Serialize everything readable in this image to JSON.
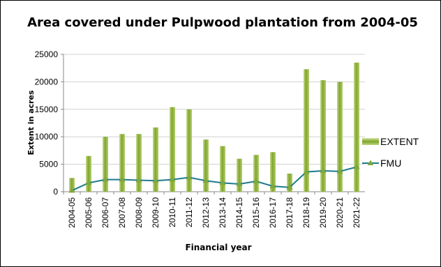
{
  "chart_data": {
    "type": "bar",
    "title": "Area covered under Pulpwood plantation from 2004-05",
    "xlabel": "Financial year",
    "ylabel": "Extent in acres",
    "ylim": [
      0,
      25000
    ],
    "yticks": [
      0,
      5000,
      10000,
      15000,
      20000,
      25000
    ],
    "grid": true,
    "legend_position": "right",
    "categories": [
      "2004-05",
      "2005-06",
      "2006-07",
      "2007-08",
      "2008-09",
      "2009-10",
      "2010-11",
      "2011-12",
      "2012-13",
      "2013-14",
      "2014-15",
      "2015-16",
      "2016-17",
      "2017-18",
      "2018-19",
      "2019-20",
      "2020-21",
      "2021-22"
    ],
    "series": [
      {
        "name": "EXTENT",
        "mark": "bar",
        "color": "#8db33a",
        "values": [
          2500,
          6500,
          10000,
          10500,
          10500,
          11700,
          15400,
          15000,
          9500,
          8300,
          6000,
          6700,
          7200,
          3300,
          22300,
          20300,
          20000,
          23500
        ]
      },
      {
        "name": "FMU",
        "mark": "line",
        "color": "#1f7a8c",
        "marker_color": "#7fa83c",
        "values": [
          200,
          1600,
          2200,
          2200,
          2100,
          2000,
          2200,
          2600,
          2000,
          1600,
          1400,
          1900,
          1000,
          800,
          3600,
          3800,
          3700,
          4500
        ]
      }
    ]
  }
}
